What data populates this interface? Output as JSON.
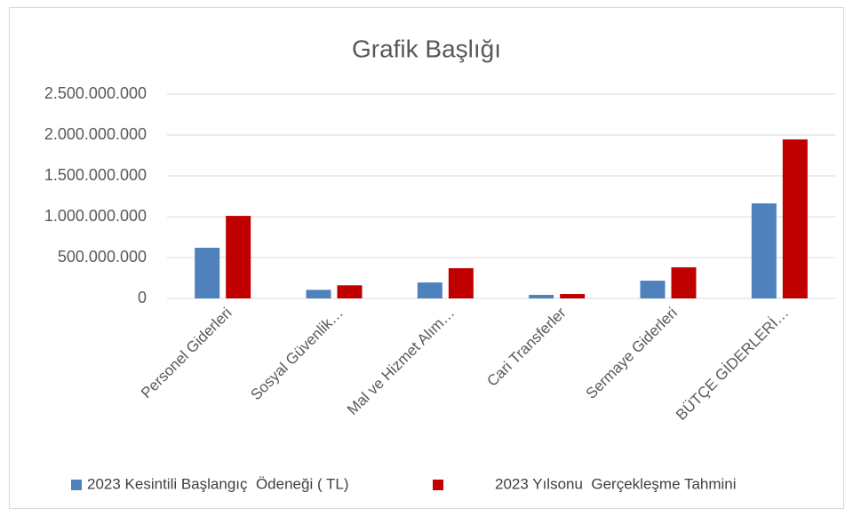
{
  "chart_data": {
    "type": "bar",
    "title": "Grafik Başlığı",
    "categories": [
      "Personel Giderleri",
      "Sosyal Güvenlik…",
      "Mal ve Hizmet Alım…",
      "Cari Transferler",
      "Sermaye Giderleri",
      "BÜTÇE GİDERLERİ…"
    ],
    "series": [
      {
        "name": "2023 Kesintili Başlangıç  Ödeneği ( TL)",
        "color": "#4f81bd",
        "values": [
          620000000,
          105000000,
          195000000,
          43000000,
          217000000,
          1163000000
        ]
      },
      {
        "name": "2023 Yılsonu  Gerçekleşme Tahmini",
        "color": "#c00000",
        "values": [
          1010000000,
          160000000,
          370000000,
          54000000,
          380000000,
          1946000000
        ]
      }
    ],
    "ylim": [
      0,
      2500000000
    ],
    "yticks": [
      0,
      {
        "value": 500000000,
        "label": "500.000.000"
      },
      {
        "value": 1000000000,
        "label": "1.000.000.000"
      },
      {
        "value": 1500000000,
        "label": "1.500.000.000"
      },
      {
        "value": 2000000000,
        "label": "2.000.000.000"
      },
      {
        "value": 2500000000,
        "label": "2.500.000.000"
      }
    ],
    "grid": true,
    "legend": "bottom"
  }
}
